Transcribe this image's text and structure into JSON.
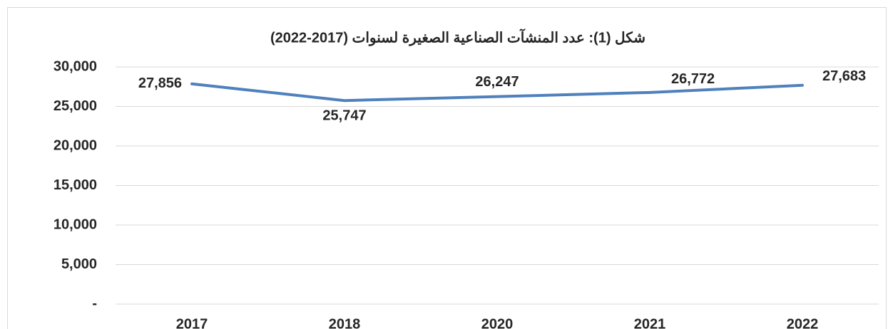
{
  "chart_data": {
    "type": "line",
    "title": "شكل (1): عدد المنشآت الصناعية الصغيرة لسنوات (2017-2022)",
    "categories": [
      "2017",
      "2018",
      "2020",
      "2021",
      "2022"
    ],
    "values": [
      27856,
      25747,
      26247,
      26772,
      27683
    ],
    "value_labels": [
      "27,856",
      "25,747",
      "26,247",
      "26,772",
      "27,683"
    ],
    "color": "#4f81bd",
    "ylim": [
      0,
      30000
    ],
    "yticks": [
      {
        "value": 0,
        "label": "-"
      },
      {
        "value": 5000,
        "label": "5,000"
      },
      {
        "value": 10000,
        "label": "10,000"
      },
      {
        "value": 15000,
        "label": "15,000"
      },
      {
        "value": 20000,
        "label": "20,000"
      },
      {
        "value": 25000,
        "label": "25,000"
      },
      {
        "value": 30000,
        "label": "30,000"
      }
    ],
    "grid": true
  }
}
